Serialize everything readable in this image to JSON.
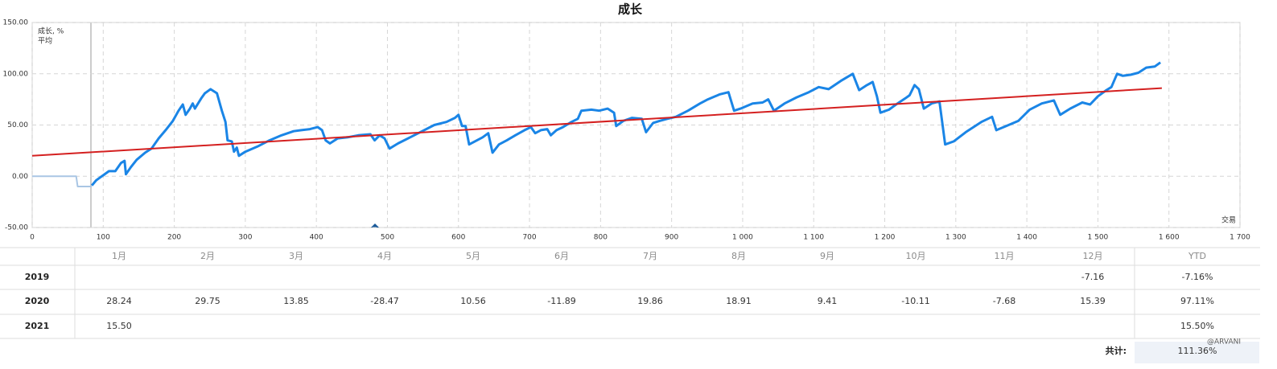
{
  "chart_data": {
    "type": "line",
    "title": "成长",
    "x_label": "交易",
    "xlim": [
      0,
      1700
    ],
    "ylim": [
      -50,
      150
    ],
    "xticks": [
      0,
      100,
      200,
      300,
      400,
      500,
      600,
      700,
      800,
      900,
      {
        "value": 1000,
        "label": "1 000"
      },
      {
        "value": 1100,
        "label": "1 100"
      },
      {
        "value": 1200,
        "label": "1 200"
      },
      {
        "value": 1300,
        "label": "1 300"
      },
      {
        "value": 1400,
        "label": "1 400"
      },
      {
        "value": 1500,
        "label": "1 500"
      },
      {
        "value": 1600,
        "label": "1 600"
      },
      {
        "value": 1700,
        "label": "1 700"
      }
    ],
    "yticks": [
      {
        "value": -50,
        "label": "-50.00"
      },
      {
        "value": 0,
        "label": "0.00"
      },
      {
        "value": 50,
        "label": "50.00"
      },
      {
        "value": 100,
        "label": "100.00"
      },
      {
        "value": 150,
        "label": "150.00"
      }
    ],
    "grid": true,
    "legend": "top-left",
    "series": [
      {
        "name": "成长, %",
        "color": "#1a85e6",
        "x": [
          84,
          90,
          100,
          108,
          117,
          125,
          130,
          132,
          139,
          147,
          159,
          168,
          178,
          189,
          198,
          206,
          212,
          216,
          222,
          226,
          229,
          238,
          243,
          251,
          260,
          267,
          272,
          275,
          281,
          284,
          288,
          291,
          300,
          317,
          334,
          351,
          368,
          379,
          391,
          402,
          408,
          413,
          419,
          430,
          444,
          459,
          476,
          482,
          489,
          496,
          503,
          515,
          532,
          549,
          566,
          583,
          595,
          600,
          605,
          610,
          615,
          623,
          634,
          642,
          648,
          657,
          668,
          680,
          693,
          702,
          708,
          716,
          725,
          730,
          738,
          747,
          759,
          768,
          773,
          787,
          798,
          810,
          819,
          822,
          832,
          844,
          858,
          864,
          874,
          883,
          894,
          906,
          923,
          940,
          951,
          968,
          980,
          988,
          997,
          1014,
          1028,
          1036,
          1044,
          1059,
          1076,
          1093,
          1107,
          1121,
          1138,
          1155,
          1164,
          1175,
          1183,
          1189,
          1194,
          1206,
          1218,
          1229,
          1235,
          1242,
          1248,
          1255,
          1266,
          1277,
          1285,
          1297,
          1314,
          1336,
          1351,
          1357,
          1371,
          1388,
          1404,
          1421,
          1438,
          1447,
          1461,
          1478,
          1489,
          1500,
          1512,
          1519,
          1527,
          1535,
          1546,
          1557,
          1568,
          1580,
          1588
        ],
        "values": [
          -9,
          -4,
          1,
          5,
          5,
          13,
          15,
          2,
          9,
          16,
          23,
          27,
          37,
          46,
          54,
          64,
          70,
          60,
          66,
          71,
          66,
          76,
          81,
          85,
          81,
          64,
          53,
          35,
          34,
          24,
          28,
          20,
          24,
          29,
          35,
          40,
          44,
          45,
          46,
          48,
          45,
          35,
          32,
          37,
          38,
          40,
          41,
          35,
          40,
          37,
          27,
          32,
          38,
          44,
          50,
          53,
          57,
          60,
          49,
          49,
          31,
          34,
          38,
          42,
          23,
          31,
          35,
          40,
          45,
          48,
          42,
          45,
          46,
          40,
          45,
          48,
          53,
          56,
          64,
          65,
          64,
          66,
          62,
          49,
          54,
          57,
          56,
          43,
          52,
          54,
          56,
          58,
          64,
          71,
          75,
          80,
          82,
          64,
          66,
          71,
          72,
          75,
          64,
          71,
          77,
          82,
          87,
          85,
          93,
          100,
          84,
          89,
          92,
          78,
          62,
          65,
          71,
          76,
          79,
          89,
          85,
          66,
          71,
          73,
          31,
          34,
          43,
          53,
          58,
          45,
          49,
          54,
          65,
          71,
          74,
          60,
          66,
          72,
          70,
          78,
          84,
          87,
          100,
          98,
          99,
          101,
          106,
          107,
          111
        ]
      },
      {
        "name": "平均",
        "color": "#d42020",
        "x": [
          0,
          1590
        ],
        "values": [
          20,
          86
        ]
      },
      {
        "color": "#a9c6e4",
        "x": [
          0,
          62,
          64,
          84
        ],
        "values": [
          0,
          0,
          -10,
          -10
        ]
      }
    ]
  },
  "table": {
    "header": [
      "1月",
      "2月",
      "3月",
      "4月",
      "5月",
      "6月",
      "7月",
      "8月",
      "9月",
      "10月",
      "11月",
      "12月",
      "YTD"
    ],
    "rows": [
      {
        "label": "2019",
        "cells": [
          null,
          null,
          null,
          null,
          null,
          null,
          null,
          null,
          null,
          null,
          null,
          "-7.16",
          "-7.16%"
        ]
      },
      {
        "label": "2020",
        "cells": [
          "28.24",
          "29.75",
          "13.85",
          "-28.47",
          "10.56",
          "-11.89",
          "19.86",
          "18.91",
          "9.41",
          "-10.11",
          "-7.68",
          "15.39",
          "97.11%"
        ]
      },
      {
        "label": "2021",
        "cells": [
          "15.50",
          null,
          null,
          null,
          null,
          null,
          null,
          null,
          null,
          null,
          null,
          null,
          "15.50%"
        ]
      }
    ],
    "total_label": "共计:",
    "total": "111.36%"
  },
  "watermark": "@ARVANI"
}
